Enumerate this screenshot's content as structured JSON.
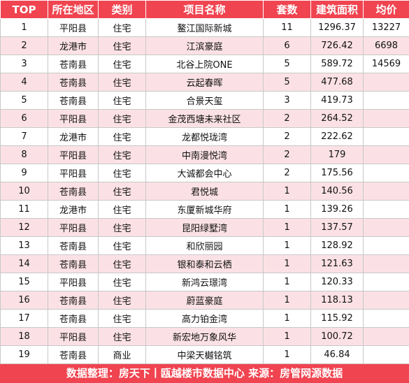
{
  "headers": [
    "TOP",
    "所在地区",
    "类别",
    "项目名称",
    "套数",
    "建筑面积",
    "均价"
  ],
  "rows": [
    {
      "top": "1",
      "region": "平阳县",
      "type": "住宅",
      "project": "鳌江国际新城",
      "units": "11",
      "area": "1296.37",
      "price": "13227"
    },
    {
      "top": "2",
      "region": "龙港市",
      "type": "住宅",
      "project": "江滨豪庭",
      "units": "6",
      "area": "726.42",
      "price": "6698"
    },
    {
      "top": "3",
      "region": "苍南县",
      "type": "住宅",
      "project": "北谷上院ONE",
      "units": "5",
      "area": "589.72",
      "price": "14569"
    },
    {
      "top": "4",
      "region": "苍南县",
      "type": "住宅",
      "project": "云起春晖",
      "units": "5",
      "area": "477.68",
      "price": ""
    },
    {
      "top": "5",
      "region": "苍南县",
      "type": "住宅",
      "project": "合景天玺",
      "units": "3",
      "area": "419.73",
      "price": ""
    },
    {
      "top": "6",
      "region": "平阳县",
      "type": "住宅",
      "project": "金茂西塘未来社区",
      "units": "2",
      "area": "264.52",
      "price": ""
    },
    {
      "top": "7",
      "region": "龙港市",
      "type": "住宅",
      "project": "龙都悦珑湾",
      "units": "2",
      "area": "222.62",
      "price": ""
    },
    {
      "top": "8",
      "region": "平阳县",
      "type": "住宅",
      "project": "中南漫悦湾",
      "units": "2",
      "area": "179",
      "price": ""
    },
    {
      "top": "9",
      "region": "平阳县",
      "type": "住宅",
      "project": "大诚都会中心",
      "units": "2",
      "area": "175.56",
      "price": ""
    },
    {
      "top": "10",
      "region": "苍南县",
      "type": "住宅",
      "project": "君悦城",
      "units": "1",
      "area": "140.56",
      "price": ""
    },
    {
      "top": "11",
      "region": "龙港市",
      "type": "住宅",
      "project": "东厦新城华府",
      "units": "1",
      "area": "139.26",
      "price": ""
    },
    {
      "top": "12",
      "region": "平阳县",
      "type": "住宅",
      "project": "昆阳绿墅湾",
      "units": "1",
      "area": "137.57",
      "price": ""
    },
    {
      "top": "13",
      "region": "苍南县",
      "type": "住宅",
      "project": "和欣丽园",
      "units": "1",
      "area": "128.92",
      "price": ""
    },
    {
      "top": "14",
      "region": "苍南县",
      "type": "住宅",
      "project": "银和泰和云栖",
      "units": "1",
      "area": "121.63",
      "price": ""
    },
    {
      "top": "15",
      "region": "平阳县",
      "type": "住宅",
      "project": "新鸿云璟湾",
      "units": "1",
      "area": "120.33",
      "price": ""
    },
    {
      "top": "16",
      "region": "苍南县",
      "type": "住宅",
      "project": "蔚蓝豪庭",
      "units": "1",
      "area": "118.13",
      "price": ""
    },
    {
      "top": "17",
      "region": "苍南县",
      "type": "住宅",
      "project": "高力铂金湾",
      "units": "1",
      "area": "115.92",
      "price": ""
    },
    {
      "top": "18",
      "region": "平阳县",
      "type": "住宅",
      "project": "新宏地万象风华",
      "units": "1",
      "area": "100.72",
      "price": ""
    },
    {
      "top": "19",
      "region": "苍南县",
      "type": "商业",
      "project": "中梁天樾铭筑",
      "units": "1",
      "area": "46.84",
      "price": ""
    }
  ],
  "footer": "数据整理：房天下丨瓯越楼市数据中心   来源：房管网源数据"
}
